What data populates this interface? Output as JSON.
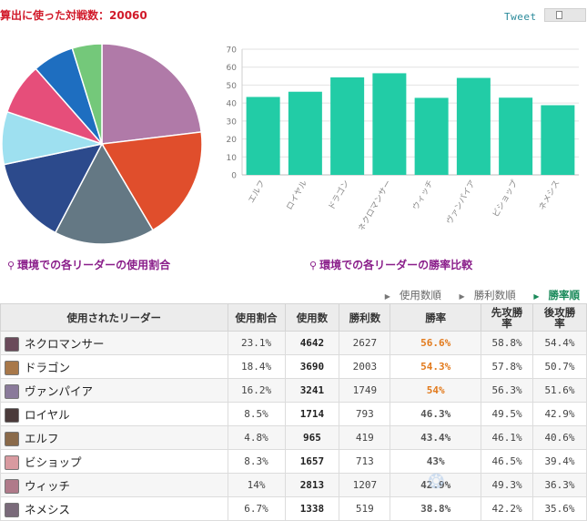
{
  "header": {
    "title": "算出に使った対戦数：20060",
    "tweet_label": "Tweet",
    "share_icon": "share-doc-icon"
  },
  "captions": {
    "pie": "環境での各リーダーの使用割合",
    "bar": "環境での各リーダーの勝率比較",
    "pin_icon": "location-pin-icon"
  },
  "sort_options": [
    {
      "label": "使用数順",
      "active": false
    },
    {
      "label": "勝利数順",
      "active": false
    },
    {
      "label": "勝率順",
      "active": true
    }
  ],
  "colors": {
    "bar": "#22cca6",
    "high_winrate": "#e27a1c",
    "caption": "#8a1e8a"
  },
  "chart_data": [
    {
      "type": "pie",
      "slices": [
        {
          "name": "ネクロマンサー",
          "value": 23.1,
          "color": "#b07aa8"
        },
        {
          "name": "ドラゴン",
          "value": 18.4,
          "color": "#e04e2c"
        },
        {
          "name": "ヴァンパイア",
          "value": 16.2,
          "color": "#647884"
        },
        {
          "name": "ウィッチ",
          "value": 14,
          "color": "#2c4a8c"
        },
        {
          "name": "ロイヤル",
          "value": 8.5,
          "color": "#9ee0f0"
        },
        {
          "name": "ビショップ",
          "value": 8.3,
          "color": "#e64e7a"
        },
        {
          "name": "ネメシス",
          "value": 6.7,
          "color": "#1e6ec0"
        },
        {
          "name": "エルフ",
          "value": 4.8,
          "color": "#74c87a"
        }
      ]
    },
    {
      "type": "bar",
      "categories": [
        "エルフ",
        "ロイヤル",
        "ドラゴン",
        "ネクロマンサー",
        "ウィッチ",
        "ヴァンパイア",
        "ビショップ",
        "ネメシス"
      ],
      "values": [
        43.4,
        46.3,
        54.3,
        56.6,
        42.9,
        54,
        43,
        38.8
      ],
      "ylim": [
        0,
        70
      ],
      "yticks": [
        0,
        10,
        20,
        30,
        40,
        50,
        60,
        70
      ],
      "grid": true
    }
  ],
  "table": {
    "headers": {
      "leader": "使用されたリーダー",
      "usage_rate": "使用割合",
      "games": "使用数",
      "wins": "勝利数",
      "winrate": "勝率",
      "first_winrate": [
        "先攻勝",
        "率"
      ],
      "second_winrate": [
        "後攻勝",
        "率"
      ]
    },
    "rows": [
      {
        "leader": "ネクロマンサー",
        "usage_rate": "23.1%",
        "games": "4642",
        "wins": "2627",
        "winrate": "56.6%",
        "first": "58.8%",
        "second": "54.4%",
        "high": true,
        "avatar_color": "#6a4a5a"
      },
      {
        "leader": "ドラゴン",
        "usage_rate": "18.4%",
        "games": "3690",
        "wins": "2003",
        "winrate": "54.3%",
        "first": "57.8%",
        "second": "50.7%",
        "high": true,
        "avatar_color": "#a8784a"
      },
      {
        "leader": "ヴァンパイア",
        "usage_rate": "16.2%",
        "games": "3241",
        "wins": "1749",
        "winrate": "54%",
        "first": "56.3%",
        "second": "51.6%",
        "high": true,
        "avatar_color": "#8a7a9a"
      },
      {
        "leader": "ロイヤル",
        "usage_rate": "8.5%",
        "games": "1714",
        "wins": "793",
        "winrate": "46.3%",
        "first": "49.5%",
        "second": "42.9%",
        "high": false,
        "avatar_color": "#4a3a3a"
      },
      {
        "leader": "エルフ",
        "usage_rate": "4.8%",
        "games": "965",
        "wins": "419",
        "winrate": "43.4%",
        "first": "46.1%",
        "second": "40.6%",
        "high": false,
        "avatar_color": "#8a6a4a"
      },
      {
        "leader": "ビショップ",
        "usage_rate": "8.3%",
        "games": "1657",
        "wins": "713",
        "winrate": "43%",
        "first": "46.5%",
        "second": "39.4%",
        "high": false,
        "avatar_color": "#d89aa0"
      },
      {
        "leader": "ウィッチ",
        "usage_rate": "14%",
        "games": "2813",
        "wins": "1207",
        "winrate": "42.9%",
        "first": "49.3%",
        "second": "36.3%",
        "high": false,
        "avatar_color": "#b07a8a"
      },
      {
        "leader": "ネメシス",
        "usage_rate": "6.7%",
        "games": "1338",
        "wins": "519",
        "winrate": "38.8%",
        "first": "42.2%",
        "second": "35.6%",
        "high": false,
        "avatar_color": "#7a6a7a"
      }
    ]
  }
}
